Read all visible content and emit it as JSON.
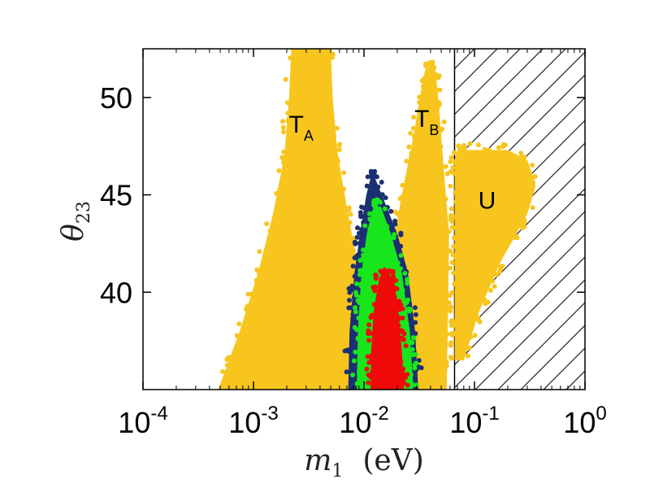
{
  "chart_data": {
    "type": "scatter",
    "title": "",
    "xlabel": {
      "symbol": "m",
      "subscript": "1",
      "unit": "(eV)"
    },
    "ylabel": {
      "symbol": "θ",
      "subscript": "23"
    },
    "x_scale": "log",
    "xlim": [
      0.0001,
      1
    ],
    "ylim": [
      35,
      52.5
    ],
    "x_ticks": [
      {
        "value": 0.0001,
        "base": "10",
        "exp": "-4"
      },
      {
        "value": 0.001,
        "base": "10",
        "exp": "-3"
      },
      {
        "value": 0.01,
        "base": "10",
        "exp": "-2"
      },
      {
        "value": 0.1,
        "base": "10",
        "exp": "-1"
      },
      {
        "value": 1,
        "base": "10",
        "exp": "0"
      }
    ],
    "y_ticks": [
      {
        "value": 40,
        "label": "40"
      },
      {
        "value": 45,
        "label": "45"
      },
      {
        "value": 50,
        "label": "50"
      }
    ],
    "excluded_region": {
      "x_min": 0.066,
      "x_max": 1,
      "pattern": "diagonal-hatch"
    },
    "series": [
      {
        "name": "yellow",
        "color": "#f7c51e",
        "regions": [
          {
            "label_main": "T",
            "label_sub": "A",
            "label_at": [
              0.0027,
              48.2
            ],
            "x_center": 0.0028,
            "top": 52.5,
            "bottom": 35.1,
            "profile": [
              [
                35,
                0.00048,
                0.0135
              ],
              [
                38,
                0.00075,
                0.0115
              ],
              [
                41,
                0.0011,
                0.009
              ],
              [
                44,
                0.0015,
                0.0072
              ],
              [
                47,
                0.0019,
                0.0058
              ],
              [
                50,
                0.0021,
                0.0052
              ],
              [
                52.5,
                0.0022,
                0.005
              ]
            ]
          },
          {
            "label_main": "T",
            "label_sub": "B",
            "label_at": [
              0.037,
              48.5
            ],
            "x_center": 0.04,
            "top": 51.5,
            "bottom": 35.1,
            "profile": [
              [
                35,
                0.027,
                0.056
              ],
              [
                40,
                0.021,
                0.058
              ],
              [
                43,
                0.019,
                0.059
              ],
              [
                45,
                0.022,
                0.055
              ],
              [
                48,
                0.028,
                0.05
              ],
              [
                50,
                0.032,
                0.047
              ],
              [
                51.5,
                0.036,
                0.044
              ]
            ]
          },
          {
            "label_main": "U",
            "label_sub": "",
            "label_at": [
              0.13,
              44.3
            ],
            "x_center": 0.14,
            "top": 47.3,
            "bottom": 36.5,
            "profile": [
              [
                36.5,
                0.066,
                0.08
              ],
              [
                39,
                0.066,
                0.11
              ],
              [
                41.5,
                0.066,
                0.17
              ],
              [
                44,
                0.066,
                0.3
              ],
              [
                45.5,
                0.066,
                0.36
              ],
              [
                46.8,
                0.066,
                0.3
              ],
              [
                47.3,
                0.07,
                0.2
              ]
            ]
          }
        ]
      },
      {
        "name": "navy",
        "color": "#1c2f72",
        "regions": [
          {
            "x_center": 0.0142,
            "top": 45.9,
            "bottom": 35.1,
            "profile": [
              [
                35,
                0.0072,
                0.031
              ],
              [
                38,
                0.0074,
                0.029
              ],
              [
                41,
                0.0082,
                0.025
              ],
              [
                43,
                0.0092,
                0.02
              ],
              [
                45,
                0.0105,
                0.0145
              ],
              [
                45.9,
                0.0115,
                0.0125
              ]
            ]
          }
        ]
      },
      {
        "name": "green",
        "color": "#18e61c",
        "regions": [
          {
            "x_center": 0.0152,
            "top": 44.4,
            "bottom": 35.1,
            "profile": [
              [
                35,
                0.0086,
                0.028
              ],
              [
                38,
                0.0088,
                0.026
              ],
              [
                41,
                0.0095,
                0.022
              ],
              [
                43,
                0.0106,
                0.0175
              ],
              [
                44.4,
                0.0122,
                0.0142
              ]
            ]
          }
        ]
      },
      {
        "name": "red",
        "color": "#f00a0a",
        "regions": [
          {
            "x_center": 0.0162,
            "top": 40.8,
            "bottom": 35.1,
            "profile": [
              [
                35,
                0.0115,
                0.023
              ],
              [
                37,
                0.0116,
                0.022
              ],
              [
                39,
                0.0122,
                0.0205
              ],
              [
                40.8,
                0.0138,
                0.0185
              ]
            ]
          }
        ]
      }
    ]
  }
}
